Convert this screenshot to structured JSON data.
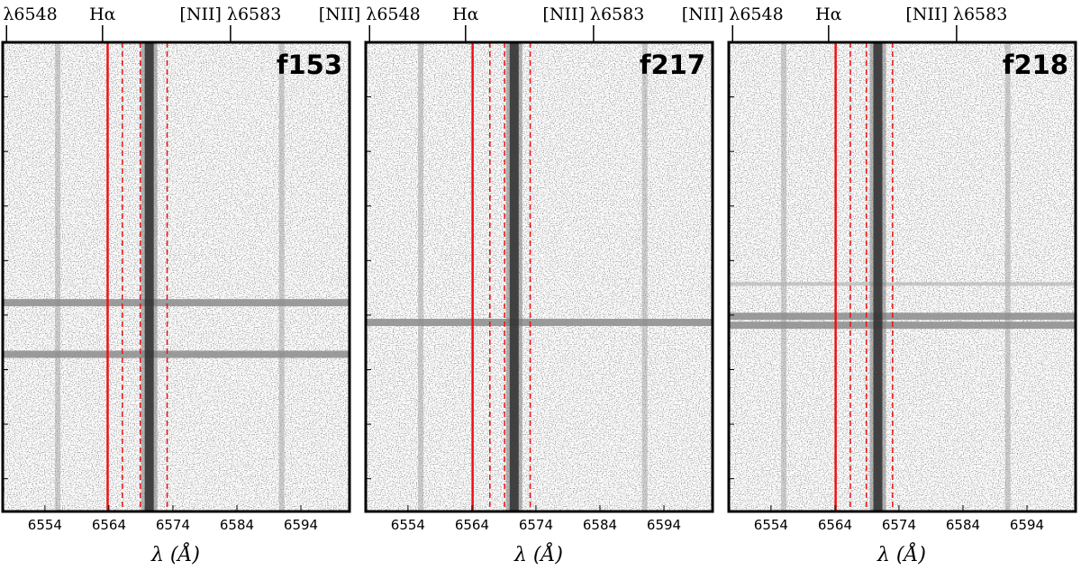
{
  "figure": {
    "type": "spectral_images",
    "xlabel": "λ (Å)",
    "x_ticks": [
      6554,
      6564,
      6574,
      6584,
      6594
    ],
    "xlim": [
      6547.4,
      6601.6
    ],
    "emission_lines": [
      {
        "label": "[NII] λ6548",
        "wavelength": 6548
      },
      {
        "label": "Hα",
        "wavelength": 6563
      },
      {
        "label": "[NII] λ6583",
        "wavelength": 6583
      }
    ],
    "colors": {
      "marker_line": "#ee1111",
      "frame": "#000000",
      "background": "#ffffff",
      "emission": "#2e2e2e"
    },
    "panels": [
      {
        "label": "f153",
        "solid_line_wavelength": 6563.8,
        "dashed_line_wavelengths": [
          6566.1,
          6568.9,
          6573.1
        ],
        "ha_center": 6570.3,
        "nii_centers": [
          6556.0,
          6591.0
        ],
        "continuum_rows_frac": [
          0.555,
          0.665
        ],
        "extra_band_frac": null
      },
      {
        "label": "f217",
        "solid_line_wavelength": 6564.1,
        "dashed_line_wavelengths": [
          6566.8,
          6569.1,
          6573.1
        ],
        "ha_center": 6570.6,
        "nii_centers": [
          6556.0,
          6591.0
        ],
        "continuum_rows_frac": [
          0.597
        ],
        "extra_band_frac": null
      },
      {
        "label": "f218",
        "solid_line_wavelength": 6564.1,
        "dashed_line_wavelengths": [
          6566.4,
          6568.9,
          6573.0
        ],
        "ha_center": 6570.7,
        "nii_centers": [
          6556.0,
          6591.0
        ],
        "continuum_rows_frac": [
          0.584,
          0.603
        ],
        "extra_band_frac": 0.515
      }
    ]
  }
}
